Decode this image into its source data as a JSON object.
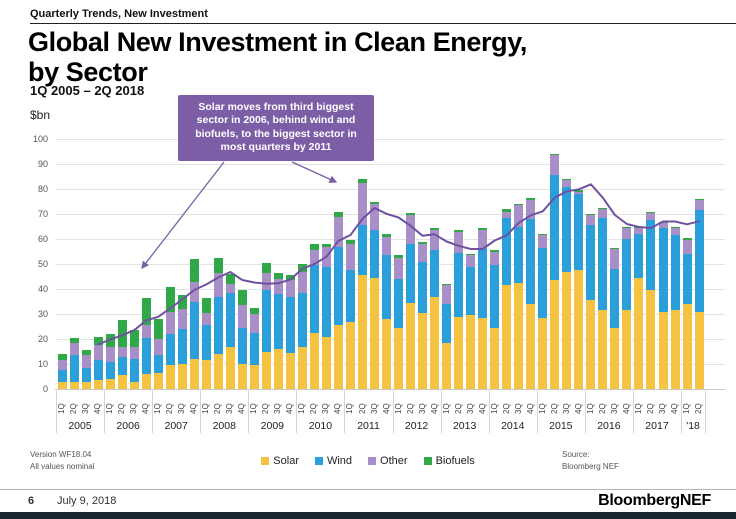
{
  "header": {
    "eyebrow": "Quarterly Trends, New Investment",
    "title": "Global New Investment in Clean Energy, by Sector",
    "subtitle": "1Q 2005 – 2Q 2018",
    "unit_label": "$bn"
  },
  "annotation": {
    "text": "Solar moves from third biggest sector in 2006, behind wind and biofuels, to the biggest sector in most quarters by 2011"
  },
  "chart_data": {
    "type": "bar",
    "stacked": true,
    "title": "Global New Investment in Clean Energy, by Sector",
    "xlabel": "",
    "ylabel": "$bn",
    "ylim": [
      0,
      100
    ],
    "ytick_interval": 10,
    "grid": true,
    "quarter_label_pattern": [
      "1Q",
      "2Q",
      "3Q",
      "4Q"
    ],
    "years": [
      {
        "label": "2005",
        "quarters": 4
      },
      {
        "label": "2006",
        "quarters": 4
      },
      {
        "label": "2007",
        "quarters": 4
      },
      {
        "label": "2008",
        "quarters": 4
      },
      {
        "label": "2009",
        "quarters": 4
      },
      {
        "label": "2010",
        "quarters": 4
      },
      {
        "label": "2011",
        "quarters": 4
      },
      {
        "label": "2012",
        "quarters": 4
      },
      {
        "label": "2013",
        "quarters": 4
      },
      {
        "label": "2014",
        "quarters": 4
      },
      {
        "label": "2015",
        "quarters": 4
      },
      {
        "label": "2016",
        "quarters": 4
      },
      {
        "label": "2017",
        "quarters": 4
      },
      {
        "label": "'18",
        "quarters": 2
      }
    ],
    "series": [
      {
        "name": "Solar",
        "color": "#F5C342",
        "values": [
          3,
          3,
          3,
          3.5,
          4,
          5.5,
          3,
          6,
          6.5,
          9.5,
          10,
          12,
          11.5,
          14,
          17,
          10,
          9.5,
          15,
          16,
          14.5,
          17,
          22.5,
          21,
          25.5,
          27,
          45.5,
          44.5,
          28,
          24.5,
          34.5,
          30.5,
          37,
          18.5,
          29,
          29.5,
          28.5,
          24.5,
          41.5,
          42.5,
          34,
          28.5,
          43.5,
          47,
          47.5,
          35.5,
          31.5,
          24.5,
          31.5,
          44.5,
          39.5,
          31,
          31.5,
          34,
          31
        ]
      },
      {
        "name": "Wind",
        "color": "#2B9FDA",
        "values": [
          4.5,
          10.5,
          5.5,
          8,
          7,
          7.5,
          9,
          14.5,
          7,
          12.5,
          14,
          23,
          14,
          23,
          21.5,
          14.5,
          13,
          24.5,
          22,
          22.5,
          21.5,
          27,
          28,
          31.5,
          20.5,
          20,
          19,
          25.5,
          19.5,
          23.5,
          20.5,
          18.5,
          15.5,
          25.5,
          19.5,
          28,
          25,
          27,
          22.5,
          34,
          28,
          42,
          34,
          30.5,
          30,
          37,
          23.5,
          28.5,
          17.5,
          28,
          33.5,
          30,
          20,
          40.5
        ]
      },
      {
        "name": "Other",
        "color": "#A98FC7",
        "values": [
          4,
          5,
          5,
          6,
          6,
          4,
          5,
          5,
          6.5,
          9,
          8,
          8,
          5,
          9.5,
          3.5,
          9,
          7.5,
          7,
          6,
          6.5,
          8.5,
          6,
          8,
          12,
          10.5,
          17,
          10.5,
          7.5,
          8.5,
          11.5,
          7,
          8,
          7.5,
          8.5,
          4.5,
          7,
          5.5,
          2.5,
          8.5,
          7.5,
          5,
          8,
          2.5,
          1,
          4,
          3.5,
          8,
          4.5,
          2.5,
          3,
          2,
          3,
          5.5,
          4
        ]
      },
      {
        "name": "Biofuels",
        "color": "#31A848",
        "values": [
          2.5,
          2,
          2,
          3.5,
          5,
          10.5,
          6.5,
          11,
          8,
          10,
          5.5,
          9,
          6,
          6,
          4,
          6,
          2.5,
          4,
          2.5,
          2,
          3,
          2.5,
          1,
          2,
          1.5,
          1.5,
          1,
          1,
          1,
          1,
          1,
          1,
          0.5,
          0.5,
          0.5,
          1,
          0.5,
          1,
          0.5,
          1,
          0.5,
          0.5,
          0.5,
          0.5,
          0.5,
          0.5,
          0.5,
          0.5,
          0.5,
          0.5,
          0.5,
          0.5,
          1,
          0.5
        ]
      }
    ],
    "trend_line": {
      "name": "4-quarter moving average",
      "color": "#70519F",
      "start_index": 3,
      "values": [
        17.8,
        19.8,
        21.5,
        23.5,
        27.4,
        28.9,
        32.3,
        35.8,
        39.6,
        41.8,
        44.6,
        46.8,
        43.6,
        42.6,
        42.1,
        42.3,
        43.8,
        48.1,
        50,
        52.9,
        59.3,
        61.6,
        68.1,
        72.4,
        70.1,
        68.6,
        65.3,
        61.3,
        61.9,
        59,
        57.3,
        56,
        56,
        59.4,
        61.5,
        66.5,
        69.5,
        71.1,
        76.6,
        79.1,
        79.9,
        81.9,
        76.5,
        69.6,
        66,
        64.8,
        64.4,
        67,
        67,
        65.9,
        67.1
      ]
    },
    "legend_position": "bottom"
  },
  "footnotes": {
    "version": "Version WF18.04",
    "note": "All values nominal",
    "source_label": "Source:",
    "source": "Bloomberg NEF"
  },
  "footer": {
    "page": "6",
    "date": "July 9, 2018",
    "brand": "BloombergNEF"
  }
}
